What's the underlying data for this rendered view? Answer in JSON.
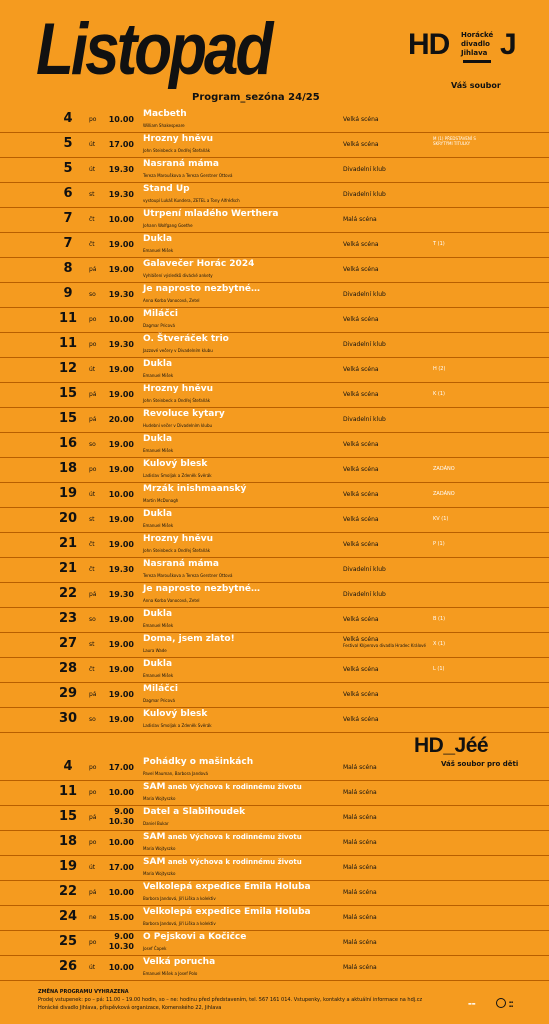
{
  "header": {
    "title": "Listopad",
    "subtitle": "Program_sezóna 24/25",
    "logo_main": "HD",
    "logo_middle": [
      "Horácké",
      "divadlo",
      "Jihlava"
    ],
    "logo_j": "J",
    "tagline": "Váš soubor"
  },
  "program": [
    {
      "day": "4",
      "dow": "po",
      "time": "10.00",
      "title": "Macbeth",
      "author": "William Shakespeare",
      "venue": "Velká scéna",
      "note": ""
    },
    {
      "day": "5",
      "dow": "út",
      "time": "17.00",
      "title": "Hrozny hněvu",
      "author": "John Steinbeck a Ondřej Štefaňák",
      "venue": "Velká scéna",
      "note": "M (1) PŘEDSTAVENÍ S SKRYTÝMI TITULKY"
    },
    {
      "day": "5",
      "dow": "út",
      "time": "19.30",
      "title": "Nasraná máma",
      "author": "Tereza Marouškova a Tereza Gerstner Ottová",
      "venue": "Divadelní klub",
      "note": ""
    },
    {
      "day": "6",
      "dow": "st",
      "time": "19.30",
      "title": "Stand Up",
      "author": "vystoupí Lukáš Kundera, ZETEL a Tony Alfréďsch",
      "venue": "Divadelní klub",
      "note": ""
    },
    {
      "day": "7",
      "dow": "čt",
      "time": "10.00",
      "title": "Utrpení mladého Werthera",
      "author": "Johann Wolfgang Goethe",
      "venue": "Malá scéna",
      "note": ""
    },
    {
      "day": "7",
      "dow": "čt",
      "time": "19.00",
      "title": "Dukla",
      "author": "Emanuel Mišek",
      "venue": "Velká scéna",
      "note": "T (1)"
    },
    {
      "day": "8",
      "dow": "pá",
      "time": "19.00",
      "title": "Galavečer Horác 2024",
      "author": "Vyhlášení výsledků divácké ankety",
      "venue": "Velká scéna",
      "note": ""
    },
    {
      "day": "9",
      "dow": "so",
      "time": "19.30",
      "title": "Je naprosto nezbytné…",
      "author": "Anna Korba Vanocová, Zetel",
      "venue": "Divadelní klub",
      "note": ""
    },
    {
      "day": "11",
      "dow": "po",
      "time": "10.00",
      "title": "Miláčci",
      "author": "Dagmar Pricová",
      "venue": "Velká scéna",
      "note": ""
    },
    {
      "day": "11",
      "dow": "po",
      "time": "19.30",
      "title": "O. Štveráček trio",
      "author": "Jazzové večery v Divadelním klubu",
      "venue": "Divadelní klub",
      "note": ""
    },
    {
      "day": "12",
      "dow": "út",
      "time": "19.00",
      "title": "Dukla",
      "author": "Emanuel Mišek",
      "venue": "Velká scéna",
      "note": "H (2)"
    },
    {
      "day": "15",
      "dow": "pá",
      "time": "19.00",
      "title": "Hrozny hněvu",
      "author": "John Steinbeck a Ondřej Štefaňák",
      "venue": "Velká scéna",
      "note": "K (1)"
    },
    {
      "day": "15",
      "dow": "pá",
      "time": "20.00",
      "title": "Revoluce kytary",
      "author": "Hudební večer v Divadelním klubu",
      "venue": "Divadelní klub",
      "note": ""
    },
    {
      "day": "16",
      "dow": "so",
      "time": "19.00",
      "title": "Dukla",
      "author": "Emanuel Mišek",
      "venue": "Velká scéna",
      "note": ""
    },
    {
      "day": "18",
      "dow": "po",
      "time": "19.00",
      "title": "Kulový blesk",
      "author": "Ladislav Smoljak a Zdeněk Svěrák",
      "venue": "Velká scéna",
      "note": "ZADÁNO"
    },
    {
      "day": "19",
      "dow": "út",
      "time": "10.00",
      "title": "Mrzák inishmaanský",
      "author": "Martin McDonagh",
      "venue": "Velká scéna",
      "note": "ZADÁNO"
    },
    {
      "day": "20",
      "dow": "st",
      "time": "19.00",
      "title": "Dukla",
      "author": "Emanuel Mišek",
      "venue": "Velká scéna",
      "note": "KV (1)"
    },
    {
      "day": "21",
      "dow": "čt",
      "time": "19.00",
      "title": "Hrozny hněvu",
      "author": "John Steinbeck a Ondřej Štefaňák",
      "venue": "Velká scéna",
      "note": "P (1)"
    },
    {
      "day": "21",
      "dow": "čt",
      "time": "19.30",
      "title": "Nasraná máma",
      "author": "Tereza Marouškova a Tereza Gerstner Ottová",
      "venue": "Divadelní klub",
      "note": ""
    },
    {
      "day": "22",
      "dow": "pá",
      "time": "19.30",
      "title": "Je naprosto nezbytné…",
      "author": "Anna Korba Vanocová, Zetel",
      "venue": "Divadelní klub",
      "note": ""
    },
    {
      "day": "23",
      "dow": "so",
      "time": "19.00",
      "title": "Dukla",
      "author": "Emanuel Mišek",
      "venue": "Velká scéna",
      "note": "B (1)"
    },
    {
      "day": "27",
      "dow": "st",
      "time": "19.00",
      "title": "Doma, jsem zlato!",
      "author": "Laura Wade",
      "venue": "Velká scéna",
      "venue_note": "Festival Klíperova divadla Hradec Králové",
      "note": "X (1)"
    },
    {
      "day": "28",
      "dow": "čt",
      "time": "19.00",
      "title": "Dukla",
      "author": "Emanuel Mišek",
      "venue": "Velká scéna",
      "note": "L (1)"
    },
    {
      "day": "29",
      "dow": "pá",
      "time": "19.00",
      "title": "Miláčci",
      "author": "Dagmar Pricová",
      "venue": "Velká scéna",
      "note": ""
    },
    {
      "day": "30",
      "dow": "so",
      "time": "19.00",
      "title": "Kulový blesk",
      "author": "Ladislav Smoljak a Zdeněk Svěrák",
      "venue": "Velká scéna",
      "note": ""
    }
  ],
  "jee": {
    "logo": "HD_Jéé",
    "tagline": "Váš soubor pro děti"
  },
  "kids_program": [
    {
      "day": "4",
      "dow": "po",
      "time": "17.00",
      "title": "Pohádky o mašinkách",
      "author": "Pavel Mauman, Barbora Jandová",
      "venue": "Malá scéna"
    },
    {
      "day": "11",
      "dow": "po",
      "time": "10.00",
      "title": "SAM",
      "title_small": " aneb Výchova k rodinnému životu",
      "author": "Maria Wojtyszko",
      "venue": "Malá scéna"
    },
    {
      "day": "15",
      "dow": "pá",
      "time": "9.00",
      "time2": "10.30",
      "title": "Datel a Slabihoudek",
      "author": "Daniel Bukar",
      "venue": "Malá scéna"
    },
    {
      "day": "18",
      "dow": "po",
      "time": "10.00",
      "title": "SAM",
      "title_small": " aneb Výchova k rodinnému životu",
      "author": "Maria Wojtyszko",
      "venue": "Malá scéna"
    },
    {
      "day": "19",
      "dow": "út",
      "time": "17.00",
      "title": "SAM",
      "title_small": " aneb Výchova k rodinnému životu",
      "author": "Maria Wojtyszko",
      "venue": "Malá scéna"
    },
    {
      "day": "22",
      "dow": "pá",
      "time": "10.00",
      "title": "Velkolepá expedice Emila Holuba",
      "author": "Barbora Jandová, Jiří Liška a kolektiv",
      "venue": "Malá scéna"
    },
    {
      "day": "24",
      "dow": "ne",
      "time": "15.00",
      "title": "Velkolepá expedice Emila Holuba",
      "author": "Barbora Jandová, Jiří Liška a kolektiv",
      "venue": "Malá scéna"
    },
    {
      "day": "25",
      "dow": "po",
      "time": "9.00",
      "time2": "10.30",
      "title": "O Pejskovi a Kočičce",
      "author": "Josef Čapek",
      "venue": "Malá scéna"
    },
    {
      "day": "26",
      "dow": "út",
      "time": "10.00",
      "title": "Velká porucha",
      "author": "Emanuel Mišek a Josef Polo",
      "venue": "Malá scéna"
    }
  ],
  "footer": {
    "heading": "ZMĚNA PROGRAMU VYHRAZENA",
    "line1": "Prodej vstupenek: po – pá: 11.00 – 19.00 hodin, so – ne: hodinu před představením, tel. 567 161 014. Vstupenky, kontakty a aktuální informace na hdj.cz",
    "line2": "Horácké divadlo Jihlava, příspěvková organizace, Komenského 22, Jihlava"
  },
  "colors": {
    "background": "#f59b1f",
    "title_text": "#ffffff",
    "ink": "#111111"
  }
}
